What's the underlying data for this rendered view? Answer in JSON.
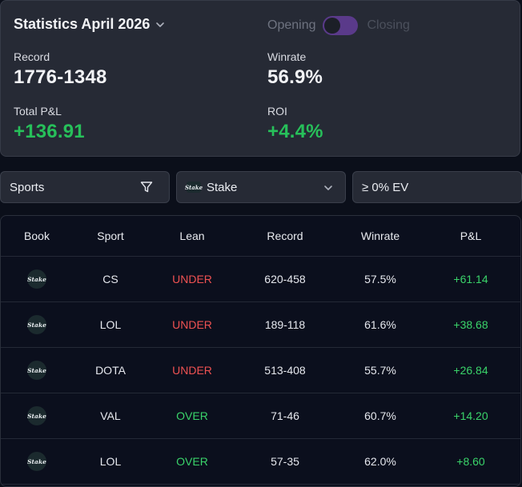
{
  "stats": {
    "title": "Statistics April 2026",
    "toggle": {
      "left_label": "Opening",
      "right_label": "Closing",
      "state": "opening"
    },
    "record_label": "Record",
    "record_value": "1776-1348",
    "winrate_label": "Winrate",
    "winrate_value": "56.9%",
    "pnl_label": "Total P&L",
    "pnl_value": "+136.91",
    "roi_label": "ROI",
    "roi_value": "+4.4%"
  },
  "filters": {
    "sports_label": "Sports",
    "book_label": "Stake",
    "ev_label": "≥ 0% EV"
  },
  "table": {
    "headers": {
      "book": "Book",
      "sport": "Sport",
      "lean": "Lean",
      "record": "Record",
      "winrate": "Winrate",
      "pnl": "P&L"
    },
    "rows": [
      {
        "book": "Stake",
        "sport": "CS",
        "lean": "UNDER",
        "record": "620-458",
        "winrate": "57.5%",
        "pnl": "+61.14"
      },
      {
        "book": "Stake",
        "sport": "LOL",
        "lean": "UNDER",
        "record": "189-118",
        "winrate": "61.6%",
        "pnl": "+38.68"
      },
      {
        "book": "Stake",
        "sport": "DOTA",
        "lean": "UNDER",
        "record": "513-408",
        "winrate": "55.7%",
        "pnl": "+26.84"
      },
      {
        "book": "Stake",
        "sport": "VAL",
        "lean": "OVER",
        "record": "71-46",
        "winrate": "60.7%",
        "pnl": "+14.20"
      },
      {
        "book": "Stake",
        "sport": "LOL",
        "lean": "OVER",
        "record": "57-35",
        "winrate": "62.0%",
        "pnl": "+8.60"
      }
    ]
  },
  "colors": {
    "positive": "#27c05a",
    "under": "#f05252",
    "over": "#3ad46a",
    "toggle": "#5a3a8a"
  },
  "icons": {
    "title_dropdown": "chevron-down-icon",
    "sports_filter": "filter-icon",
    "book_dropdown": "chevron-down-icon",
    "book_logo": "stake-logo"
  }
}
